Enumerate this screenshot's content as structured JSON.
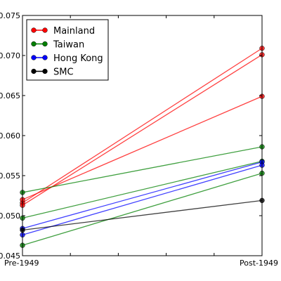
{
  "chart_data": {
    "type": "line",
    "title": "",
    "xlabel": "",
    "ylabel": "",
    "categories": [
      "Pre-1949",
      "Post-1949"
    ],
    "ylim": [
      0.045,
      0.075
    ],
    "yticks": [
      "0.045",
      "0.050",
      "0.055",
      "0.060",
      "0.065",
      "0.070",
      "0.075"
    ],
    "grid": false,
    "legend_placement": "top-left",
    "groups": [
      {
        "name": "Mainland",
        "color": "#ff0000"
      },
      {
        "name": "Taiwan",
        "color": "#008000"
      },
      {
        "name": "Hong Kong",
        "color": "#0000ff"
      },
      {
        "name": "SMC",
        "color": "#000000"
      }
    ],
    "series": [
      {
        "group": "Mainland",
        "values": [
          0.0516,
          0.0709
        ]
      },
      {
        "group": "Mainland",
        "values": [
          0.0513,
          0.0701
        ]
      },
      {
        "group": "Mainland",
        "values": [
          0.052,
          0.0649
        ]
      },
      {
        "group": "Taiwan",
        "values": [
          0.0529,
          0.0586
        ]
      },
      {
        "group": "Taiwan",
        "values": [
          0.0497,
          0.0568
        ]
      },
      {
        "group": "Taiwan",
        "values": [
          0.0463,
          0.0553
        ]
      },
      {
        "group": "Hong Kong",
        "values": [
          0.0484,
          0.0567
        ]
      },
      {
        "group": "Hong Kong",
        "values": [
          0.0476,
          0.0563
        ]
      },
      {
        "group": "SMC",
        "values": [
          0.0482,
          0.0519
        ]
      }
    ]
  }
}
